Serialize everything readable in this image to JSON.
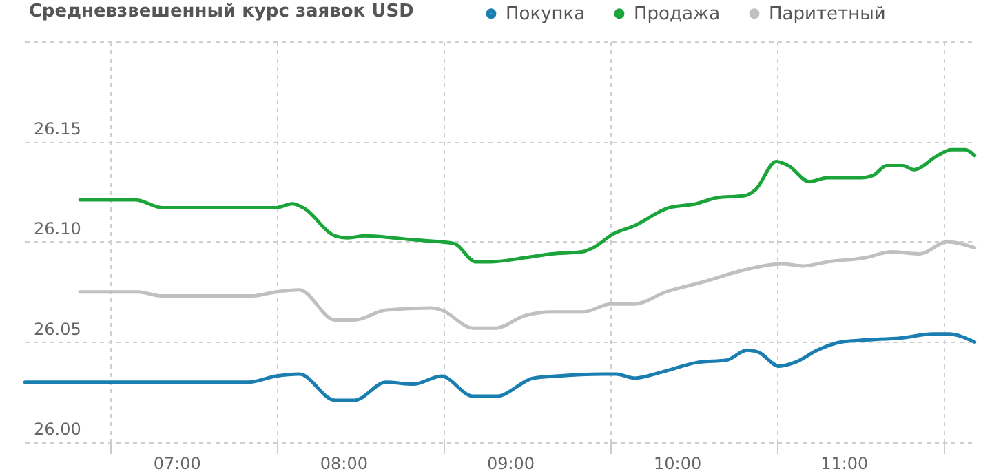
{
  "chart_data": {
    "type": "line",
    "title": "Средневзвешенный курс заявок USD",
    "legend": "top",
    "grid": true,
    "xlim": [
      6.09,
      11.79
    ],
    "xticks": [
      {
        "value": 6.6,
        "label": null
      },
      {
        "value": 7,
        "label": "07:00"
      },
      {
        "value": 7.6,
        "label": null
      },
      {
        "value": 8,
        "label": "08:00"
      },
      {
        "value": 8.6,
        "label": null
      },
      {
        "value": 9,
        "label": "09:00"
      },
      {
        "value": 9.6,
        "label": null
      },
      {
        "value": 10,
        "label": "10:00"
      },
      {
        "value": 10.6,
        "label": null
      },
      {
        "value": 11,
        "label": "11:00"
      },
      {
        "value": 11.6,
        "label": null
      }
    ],
    "ylim": [
      26,
      26.2
    ],
    "yticks": [
      {
        "value": 26,
        "label": "26.00"
      },
      {
        "value": 26.05,
        "label": "26.05"
      },
      {
        "value": 26.1,
        "label": "26.10"
      },
      {
        "value": 26.15,
        "label": "26.15"
      },
      {
        "value": 26.2,
        "label": null
      }
    ],
    "series": [
      {
        "name": "Покупка",
        "color": "#1a7fb0",
        "x": [
          6.091,
          7.43,
          7.595,
          7.736,
          7.95,
          8.066,
          8.256,
          8.421,
          8.587,
          8.777,
          8.917,
          9.14,
          9.273,
          9.554,
          9.636,
          9.744,
          9.909,
          10.132,
          10.298,
          10.421,
          10.488,
          10.612,
          10.711,
          10.843,
          10.983,
          11.124,
          11.339,
          11.537,
          11.628,
          11.785
        ],
        "values": [
          26.03,
          26.03,
          26.033,
          26.034,
          26.021,
          26.021,
          26.03,
          26.029,
          26.033,
          26.023,
          26.023,
          26.032,
          26.033,
          26.034,
          26.034,
          26.032,
          26.035,
          26.04,
          26.041,
          26.046,
          26.045,
          26.038,
          26.04,
          26.046,
          26.05,
          26.051,
          26.052,
          26.054,
          26.054,
          26.05
        ]
      },
      {
        "name": "Продажа",
        "color": "#1aa43a",
        "x": [
          6.421,
          6.752,
          6.917,
          7.595,
          7.694,
          7.76,
          7.95,
          8.025,
          8.132,
          8.298,
          8.421,
          8.587,
          8.669,
          8.793,
          8.876,
          9.083,
          9.248,
          9.43,
          9.496,
          9.62,
          9.744,
          9.95,
          10.116,
          10.24,
          10.405,
          10.471,
          10.595,
          10.669,
          10.793,
          10.901,
          11.107,
          11.174,
          11.256,
          11.355,
          11.421,
          11.562,
          11.645,
          11.727,
          11.785
        ],
        "values": [
          26.121,
          26.121,
          26.117,
          26.117,
          26.119,
          26.117,
          26.103,
          26.102,
          26.103,
          26.102,
          26.101,
          26.1,
          26.099,
          26.09,
          26.09,
          26.092,
          26.094,
          26.095,
          26.097,
          26.104,
          26.108,
          26.117,
          26.119,
          26.122,
          26.123,
          26.126,
          26.14,
          26.138,
          26.13,
          26.132,
          26.132,
          26.133,
          26.138,
          26.138,
          26.136,
          26.143,
          26.146,
          26.146,
          26.143
        ]
      },
      {
        "name": "Паритетный",
        "color": "#c0c0c0",
        "x": [
          6.421,
          6.769,
          6.909,
          7.455,
          7.595,
          7.736,
          7.95,
          8.066,
          8.256,
          8.529,
          8.587,
          8.777,
          8.917,
          9.083,
          9.248,
          9.438,
          9.603,
          9.744,
          9.934,
          10.157,
          10.405,
          10.628,
          10.76,
          10.901,
          11.124,
          11.289,
          11.455,
          11.62,
          11.785
        ],
        "values": [
          26.075,
          26.075,
          26.073,
          26.073,
          26.075,
          26.076,
          26.061,
          26.061,
          26.066,
          26.067,
          26.066,
          26.057,
          26.057,
          26.063,
          26.065,
          26.065,
          26.069,
          26.069,
          26.075,
          26.08,
          26.086,
          26.089,
          26.088,
          26.09,
          26.092,
          26.095,
          26.094,
          26.1,
          26.097
        ]
      }
    ]
  }
}
